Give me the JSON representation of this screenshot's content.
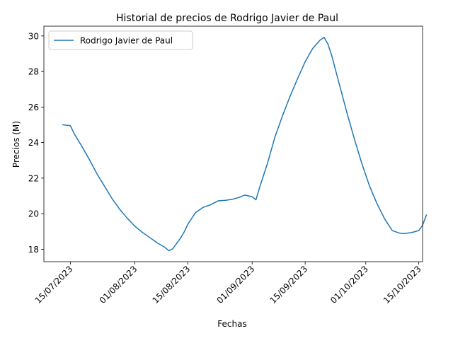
{
  "chart_data": {
    "type": "line",
    "title": "Historial de precios de Rodrigo Javier de Paul",
    "xlabel": "Fechas",
    "ylabel": "Precios (M)",
    "x_tick_labels": [
      "15/07/2023",
      "01/08/2023",
      "15/08/2023",
      "01/09/2023",
      "15/09/2023",
      "01/10/2023",
      "15/10/2023"
    ],
    "x_ticks": [
      "2023-07-15",
      "2023-08-01",
      "2023-08-15",
      "2023-09-01",
      "2023-09-15",
      "2023-10-01",
      "2023-10-15"
    ],
    "xlim": [
      "2023-07-08",
      "2023-10-16"
    ],
    "y_ticks": [
      18,
      20,
      22,
      24,
      26,
      28,
      30
    ],
    "y_tick_labels": [
      "18",
      "20",
      "22",
      "24",
      "26",
      "28",
      "30"
    ],
    "ylim": [
      17.3,
      30.55
    ],
    "grid": false,
    "legend_position": "upper left",
    "series": [
      {
        "name": "Rodrigo Javier de Paul",
        "color": "#1f77b4",
        "points": [
          [
            "2023-07-13",
            25.0
          ],
          [
            "2023-07-15",
            24.95
          ],
          [
            "2023-07-16",
            24.5
          ],
          [
            "2023-07-18",
            23.8
          ],
          [
            "2023-07-20",
            23.05
          ],
          [
            "2023-07-22",
            22.25
          ],
          [
            "2023-07-24",
            21.55
          ],
          [
            "2023-07-26",
            20.85
          ],
          [
            "2023-07-28",
            20.25
          ],
          [
            "2023-07-30",
            19.75
          ],
          [
            "2023-08-01",
            19.3
          ],
          [
            "2023-08-03",
            18.95
          ],
          [
            "2023-08-05",
            18.65
          ],
          [
            "2023-08-07",
            18.35
          ],
          [
            "2023-08-09",
            18.1
          ],
          [
            "2023-08-10",
            17.92
          ],
          [
            "2023-08-11",
            18.02
          ],
          [
            "2023-08-13",
            18.6
          ],
          [
            "2023-08-14",
            18.95
          ],
          [
            "2023-08-15",
            19.4
          ],
          [
            "2023-08-17",
            20.05
          ],
          [
            "2023-08-19",
            20.35
          ],
          [
            "2023-08-21",
            20.5
          ],
          [
            "2023-08-23",
            20.72
          ],
          [
            "2023-08-25",
            20.75
          ],
          [
            "2023-08-27",
            20.82
          ],
          [
            "2023-08-29",
            20.95
          ],
          [
            "2023-08-30",
            21.05
          ],
          [
            "2023-09-01",
            20.95
          ],
          [
            "2023-09-02",
            20.78
          ],
          [
            "2023-09-03",
            21.5
          ],
          [
            "2023-09-05",
            22.8
          ],
          [
            "2023-09-07",
            24.3
          ],
          [
            "2023-09-09",
            25.5
          ],
          [
            "2023-09-11",
            26.6
          ],
          [
            "2023-09-13",
            27.6
          ],
          [
            "2023-09-15",
            28.55
          ],
          [
            "2023-09-17",
            29.3
          ],
          [
            "2023-09-19",
            29.78
          ],
          [
            "2023-09-20",
            29.92
          ],
          [
            "2023-09-21",
            29.55
          ],
          [
            "2023-09-22",
            28.9
          ],
          [
            "2023-09-24",
            27.3
          ],
          [
            "2023-09-26",
            25.7
          ],
          [
            "2023-09-28",
            24.2
          ],
          [
            "2023-09-30",
            22.8
          ],
          [
            "2023-10-02",
            21.55
          ],
          [
            "2023-10-04",
            20.55
          ],
          [
            "2023-10-06",
            19.7
          ],
          [
            "2023-10-08",
            19.05
          ],
          [
            "2023-10-10",
            18.9
          ],
          [
            "2023-10-11",
            18.88
          ],
          [
            "2023-10-13",
            18.93
          ],
          [
            "2023-10-15",
            19.05
          ],
          [
            "2023-10-16",
            19.35
          ],
          [
            "2023-10-17",
            19.92
          ]
        ]
      }
    ]
  }
}
